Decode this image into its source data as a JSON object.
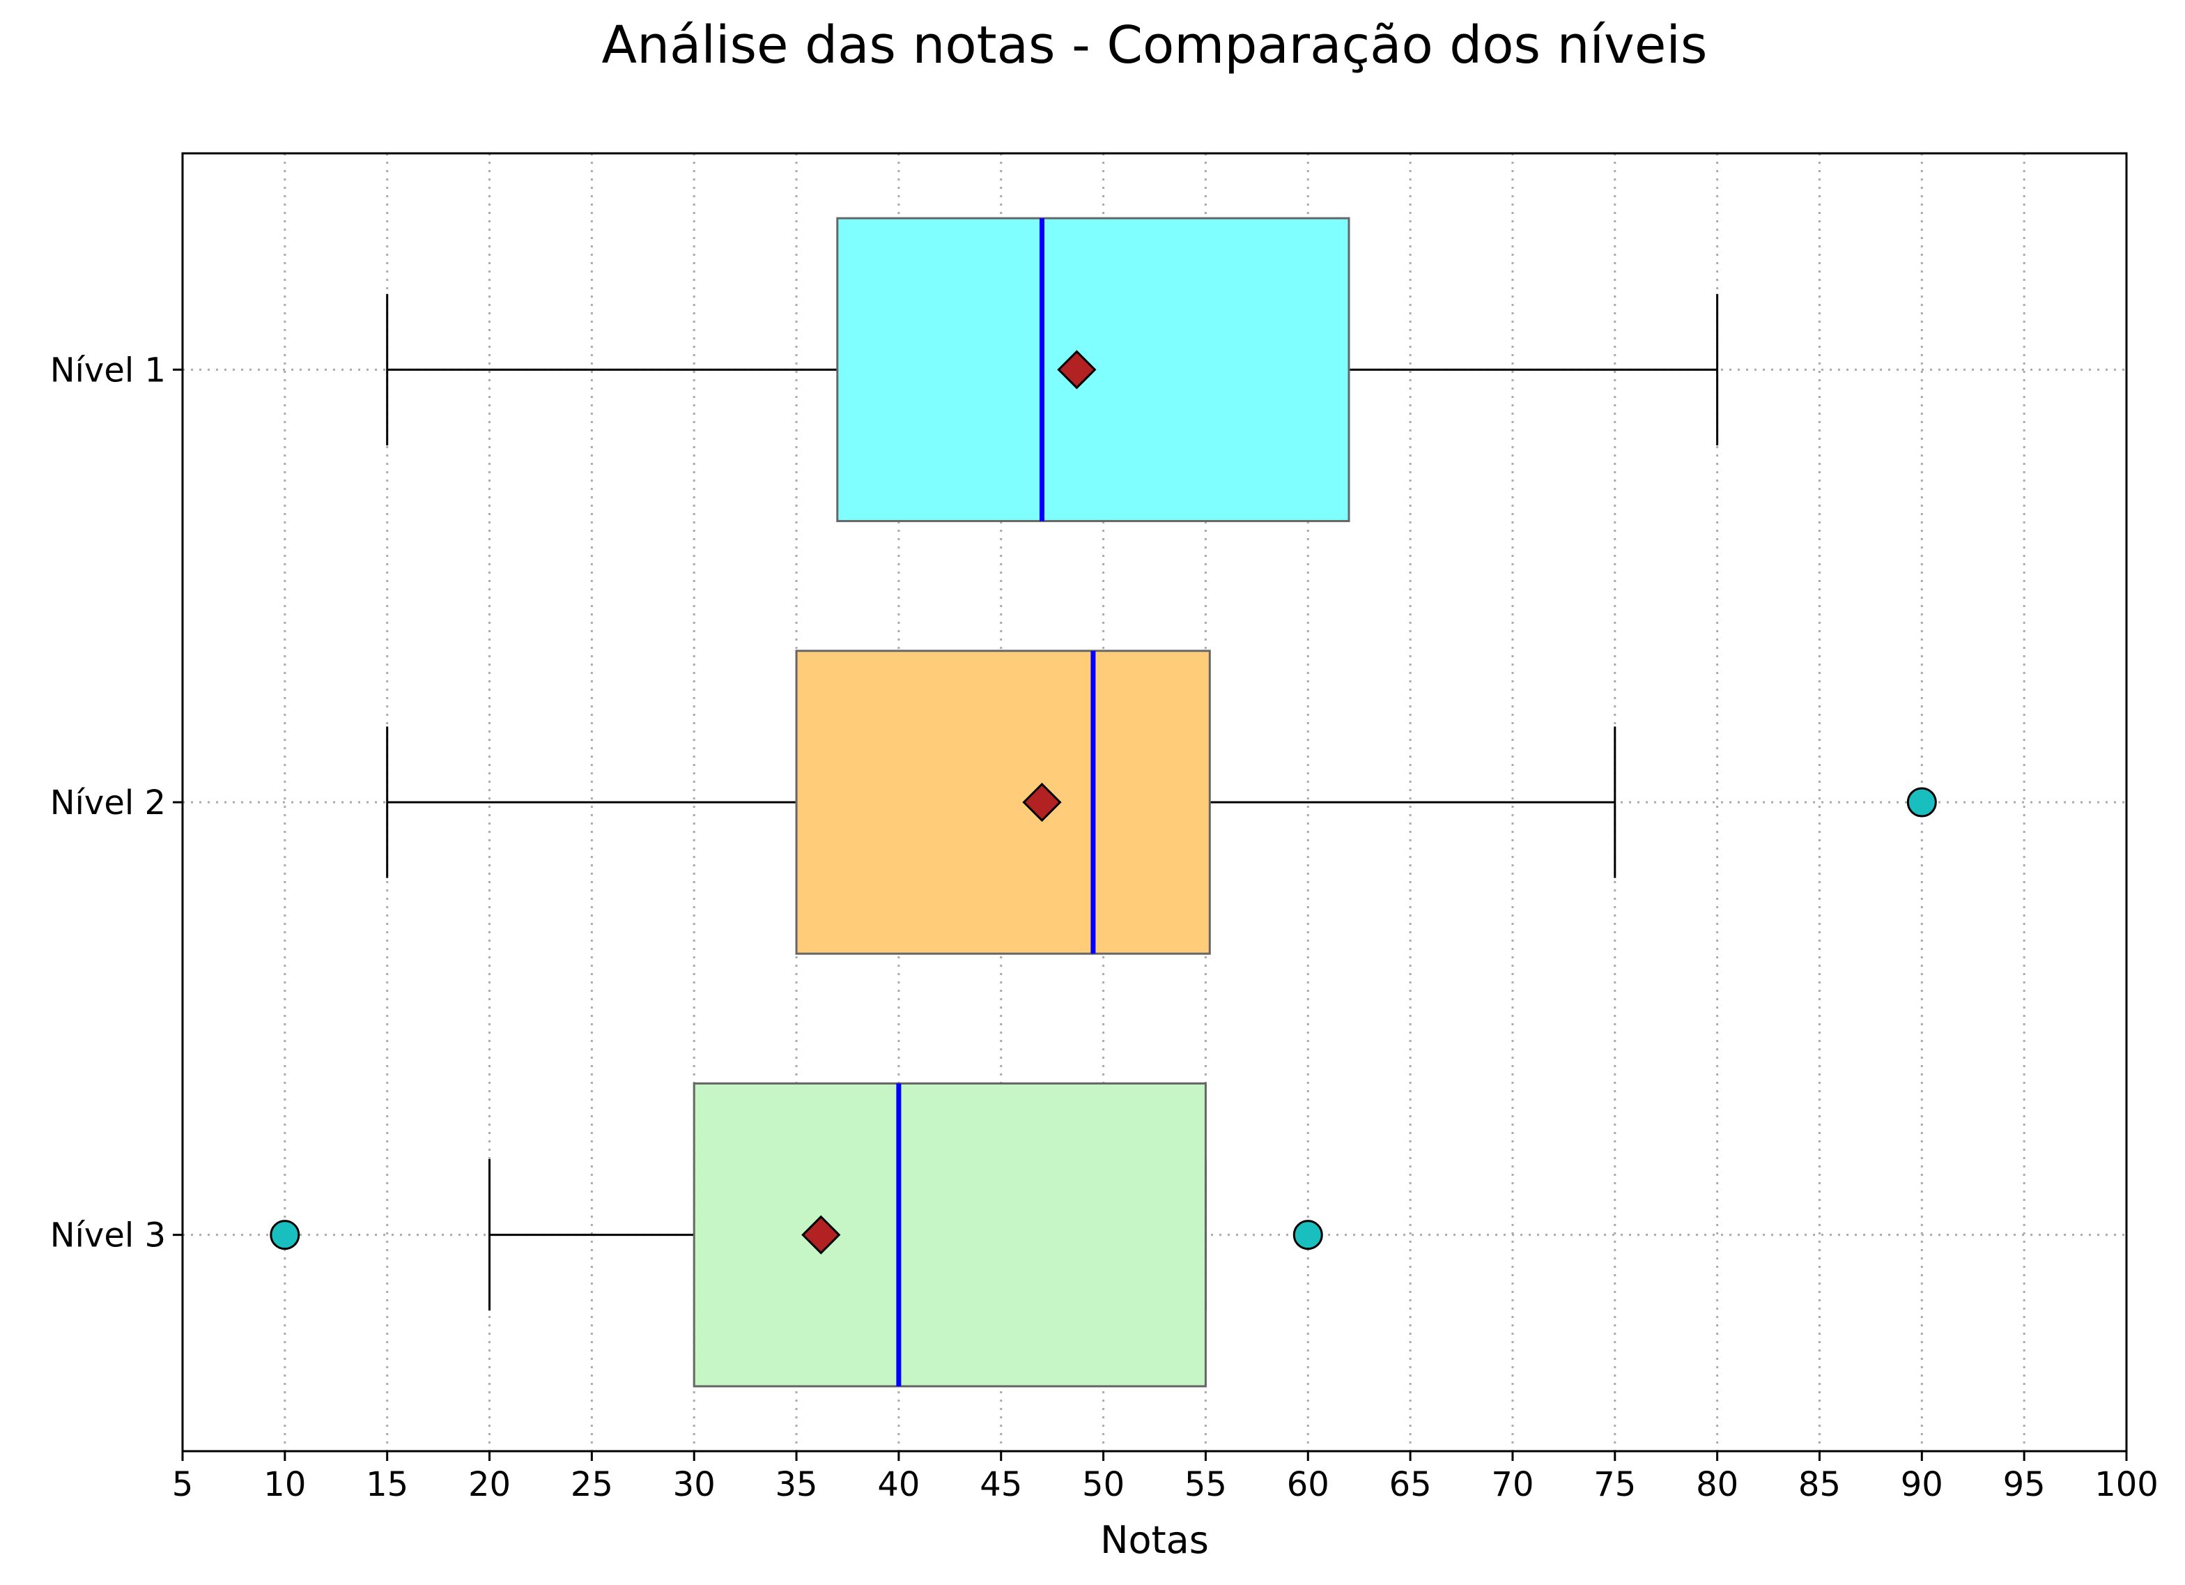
{
  "chart_data": {
    "type": "boxplot",
    "orientation": "horizontal",
    "title": "Análise das notas - Comparação dos níveis",
    "xlabel": "Notas",
    "ylabel": "",
    "xlim": [
      5,
      100
    ],
    "xticks": [
      5,
      10,
      15,
      20,
      25,
      30,
      35,
      40,
      45,
      50,
      55,
      60,
      65,
      70,
      75,
      80,
      85,
      90,
      95,
      100
    ],
    "grid": true,
    "legend": "none",
    "categories": [
      "Nível 1",
      "Nível 2",
      "Nível 3"
    ],
    "boxes": [
      {
        "label": "Nível 1",
        "whisker_low": 15,
        "q1": 37,
        "median": 47,
        "q3": 62,
        "whisker_high": 80,
        "mean": 48.7,
        "outliers": [],
        "color": "#7fffff"
      },
      {
        "label": "Nível 2",
        "whisker_low": 15,
        "q1": 35,
        "median": 49.5,
        "q3": 55.2,
        "whisker_high": 75,
        "mean": 47,
        "outliers": [
          90
        ],
        "color": "#ffcd7a"
      },
      {
        "label": "Nível 3",
        "whisker_low": 20,
        "q1": 30,
        "median": 40,
        "q3": 55,
        "whisker_high": 55,
        "mean": 36.2,
        "outliers": [
          10,
          60
        ],
        "color": "#c6f5c6"
      }
    ],
    "colors": {
      "median": "#0000ff",
      "mean": "#b22222",
      "outlier": "#19bfbf",
      "box_edge": "#666666",
      "grid": "#aaaaaa"
    }
  }
}
